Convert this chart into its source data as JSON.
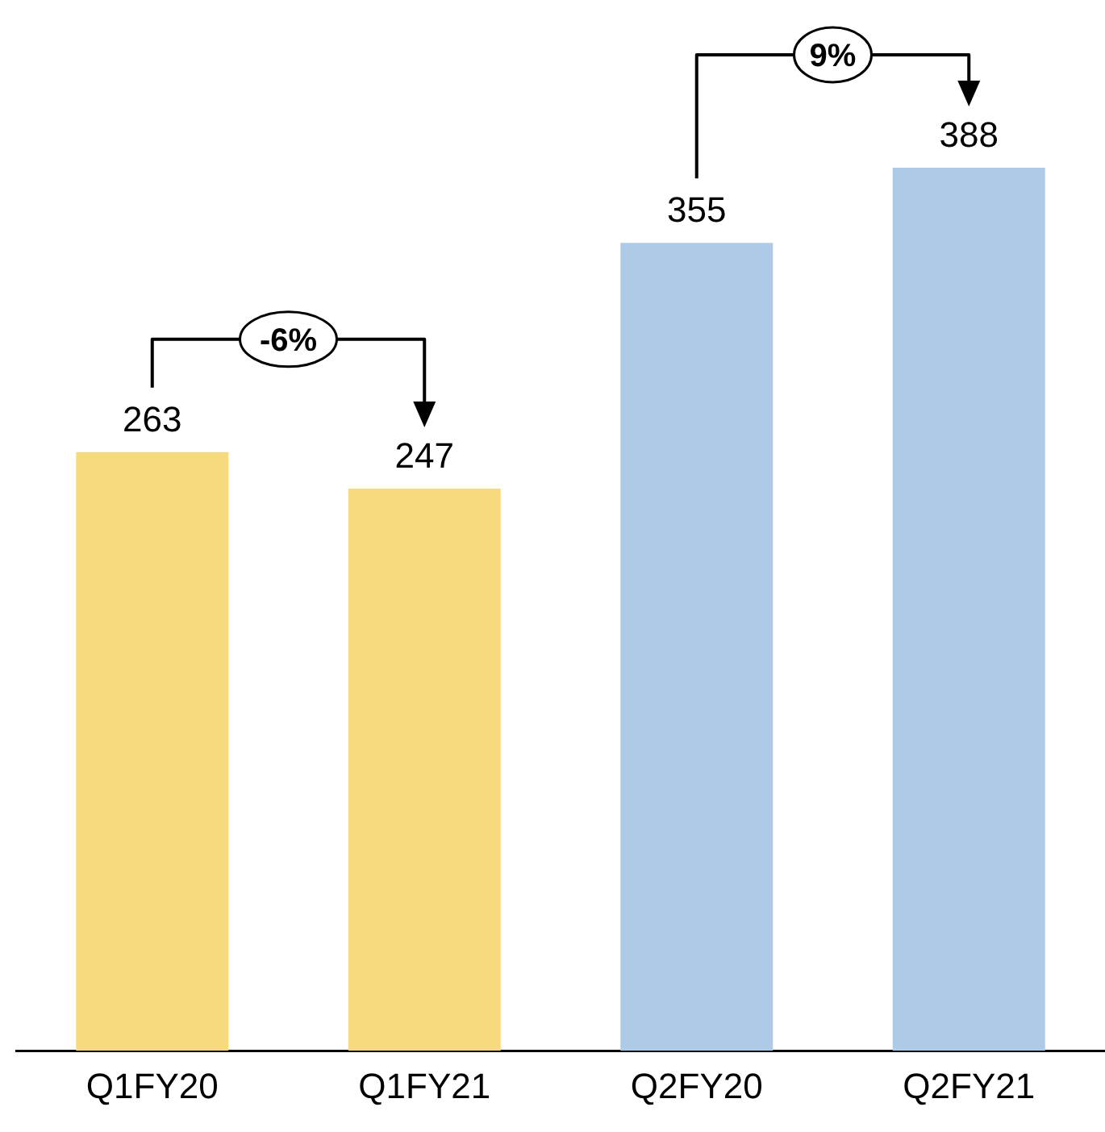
{
  "chart_data": {
    "type": "bar",
    "categories": [
      "Q1FY20",
      "Q1FY21",
      "Q2FY20",
      "Q2FY21"
    ],
    "values": [
      263,
      247,
      355,
      388
    ],
    "colors": [
      "#f8da7e",
      "#f8da7e",
      "#adcae6",
      "#adcae6"
    ],
    "data_labels": true,
    "annotations": [
      "-6%",
      "9%"
    ]
  }
}
